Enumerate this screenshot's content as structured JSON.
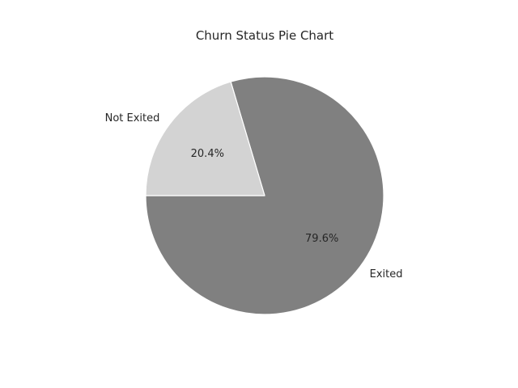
{
  "chart_data": {
    "type": "pie",
    "title": "Churn Status Pie Chart",
    "start_angle_deg": 180,
    "direction": "counterclockwise",
    "slices": [
      {
        "label": "Exited",
        "value": 79.6,
        "pct_label": "79.6%",
        "color": "#808080"
      },
      {
        "label": "Not Exited",
        "value": 20.4,
        "pct_label": "20.4%",
        "color": "#d3d3d3"
      }
    ],
    "edge_color": "#ffffff"
  }
}
